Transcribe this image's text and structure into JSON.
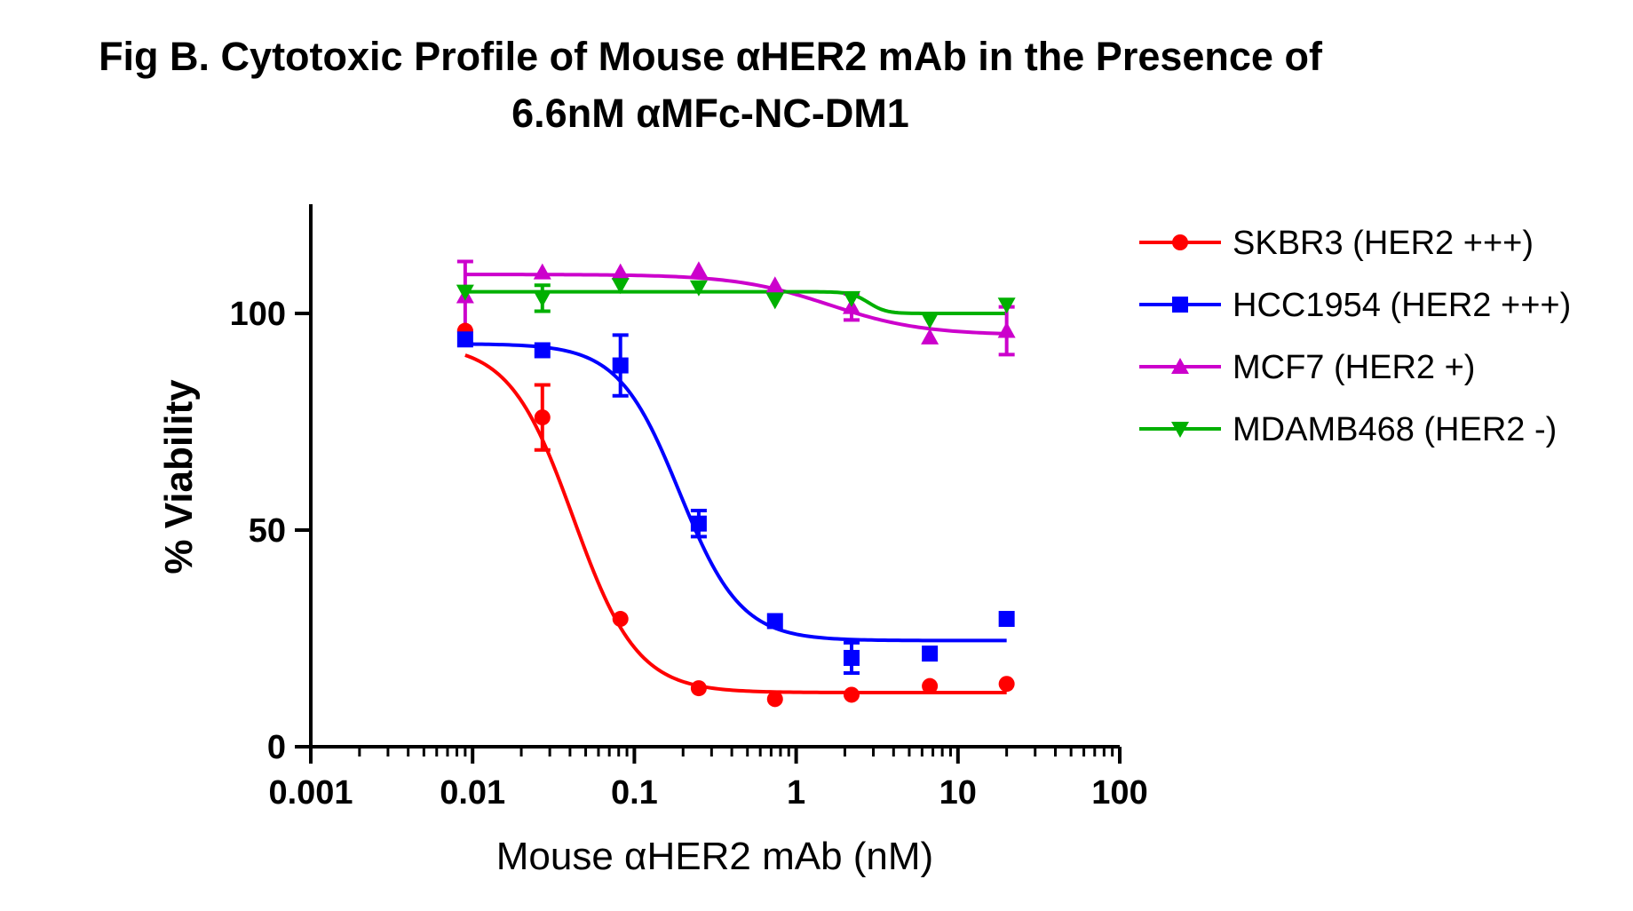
{
  "chart_data": {
    "type": "scatter",
    "title_line1": "Fig B. Cytotoxic Profile of Mouse αHER2 mAb in the Presence of",
    "title_line2": "6.6nM αMFc-NC-DM1",
    "xlabel": "Mouse αHER2 mAb (nM)",
    "ylabel": "% Viability",
    "xscale": "log",
    "xlim": [
      0.001,
      100
    ],
    "ylim": [
      0,
      125
    ],
    "x_ticks": [
      {
        "value": 0.001,
        "label": "0.001"
      },
      {
        "value": 0.01,
        "label": "0.01"
      },
      {
        "value": 0.1,
        "label": "0.1"
      },
      {
        "value": 1,
        "label": "1"
      },
      {
        "value": 10,
        "label": "10"
      },
      {
        "value": 100,
        "label": "100"
      }
    ],
    "y_ticks": [
      {
        "value": 0,
        "label": "0"
      },
      {
        "value": 50,
        "label": "50"
      },
      {
        "value": 100,
        "label": "100"
      }
    ],
    "grid": false,
    "legend_position": "right",
    "series": [
      {
        "name": "SKBR3 (HER2 +++)",
        "color": "#ff0000",
        "marker": "circle",
        "x": [
          0.009,
          0.027,
          0.082,
          0.25,
          0.74,
          2.2,
          6.7,
          20
        ],
        "y": [
          96,
          76,
          29.5,
          13.5,
          11,
          12,
          14,
          14.5
        ],
        "error": [
          0,
          7.5,
          0,
          0,
          0,
          0,
          0,
          0
        ],
        "fit": {
          "top": 93,
          "bottom": 12.5,
          "ic50": 0.042,
          "hill": 2.2
        }
      },
      {
        "name": "HCC1954 (HER2 +++)",
        "color": "#0000ff",
        "marker": "square",
        "x": [
          0.009,
          0.027,
          0.082,
          0.25,
          0.74,
          2.2,
          6.7,
          20
        ],
        "y": [
          94,
          91.5,
          88,
          51.5,
          29,
          20.5,
          21.5,
          29.5
        ],
        "error": [
          0,
          0,
          7,
          3,
          0,
          3.5,
          0,
          0
        ],
        "fit": {
          "top": 93,
          "bottom": 24.5,
          "ic50": 0.19,
          "hill": 2.3
        }
      },
      {
        "name": "MCF7 (HER2 +)",
        "color": "#cc00cc",
        "marker": "triangle-up",
        "x": [
          0.009,
          0.027,
          0.082,
          0.25,
          0.74,
          2.2,
          6.7,
          20
        ],
        "y": [
          104,
          109.5,
          109.5,
          110,
          106.5,
          101.5,
          94.5,
          96
        ],
        "error": [
          8,
          0,
          0,
          0,
          0,
          3,
          0,
          5.5
        ],
        "fit": {
          "top": 109,
          "bottom": 95,
          "ic50": 1.6,
          "hill": 1.5
        }
      },
      {
        "name": "MDAMB468 (HER2 -)",
        "color": "#00b000",
        "marker": "triangle-down",
        "x": [
          0.009,
          0.027,
          0.082,
          0.25,
          0.74,
          2.2,
          6.7,
          20
        ],
        "y": [
          105,
          103.5,
          106.5,
          106,
          103,
          103.5,
          98.5,
          102
        ],
        "error": [
          0,
          3,
          0,
          0,
          0,
          0,
          0,
          0
        ],
        "fit": {
          "top": 105,
          "bottom": 100,
          "ic50": 2.8,
          "hill": 8
        }
      }
    ]
  }
}
